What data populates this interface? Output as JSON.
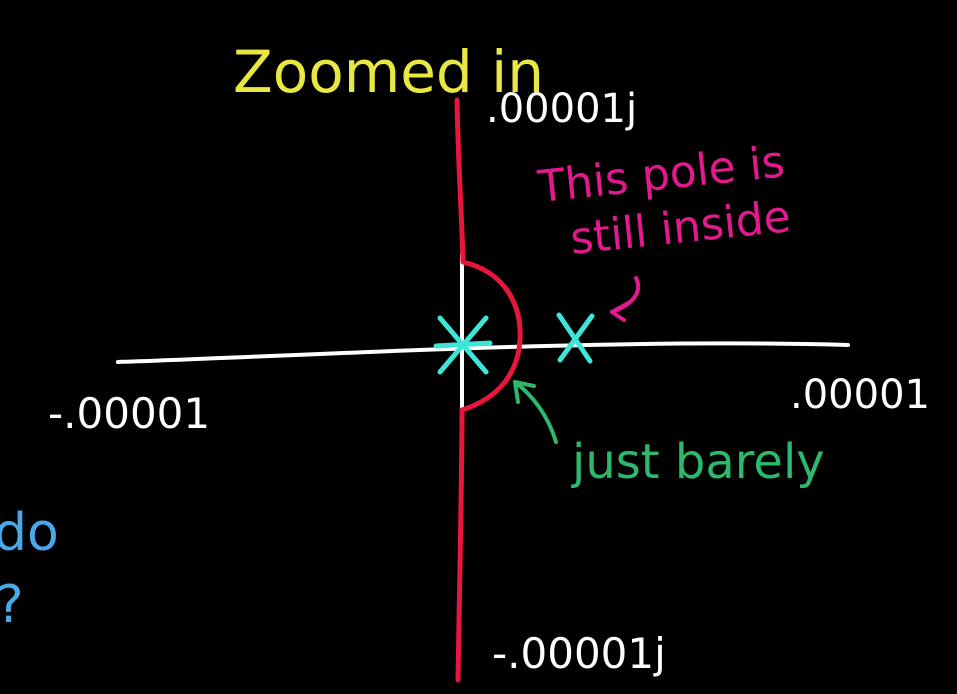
{
  "title": "Zoomed in",
  "annotations": {
    "pole_note_line1": "This pole is",
    "pole_note_line2": "still inside",
    "barely_note": "just barely",
    "left_fragment_1": "do",
    "left_fragment_2": "?"
  },
  "axes": {
    "x_min_label": "-.00001",
    "x_max_label": ".00001",
    "y_max_label": ".00001j",
    "y_min_label": "-.00001j"
  },
  "poles": [
    {
      "name": "origin-pole",
      "real": 0,
      "imag": 0
    },
    {
      "name": "right-pole",
      "real": 2.5e-06,
      "imag": 0
    }
  ],
  "colors": {
    "background": "#000000",
    "axis": "#ffffff",
    "contour": "#e8163c",
    "pole": "#3ee6d8",
    "title": "#e9e842",
    "pole_note": "#e5198f",
    "barely_note": "#2cb96b",
    "left_fragment": "#4aa8e8"
  }
}
